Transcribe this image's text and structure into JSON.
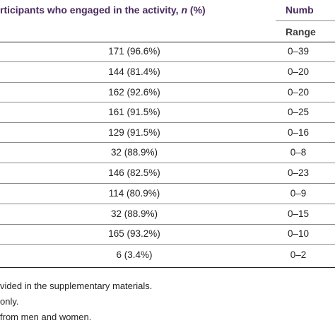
{
  "header": {
    "participants_prefix": "rticipants who engaged in the activity, ",
    "participants_n": "n",
    "participants_suffix": " (%)",
    "number_label": "Numb",
    "range_label": "Range"
  },
  "rows": [
    {
      "count": "171 (96.6%)",
      "range": "0–39"
    },
    {
      "count": "144 (81.4%)",
      "range": "0–20"
    },
    {
      "count": "162 (92.6%)",
      "range": "0–20"
    },
    {
      "count": "161 (91.5%)",
      "range": "0–25"
    },
    {
      "count": "129 (91.5%)",
      "range": "0–16"
    },
    {
      "count": "32 (88.9%)",
      "range": "0–8"
    },
    {
      "count": "146 (82.5%)",
      "range": "0–23"
    },
    {
      "count": "114 (80.9%)",
      "range": "0–9"
    },
    {
      "count": "32 (88.9%)",
      "range": "0–15"
    },
    {
      "count": "165 (93.2%)",
      "range": "0–10"
    },
    {
      "count": "6 (3.4%)",
      "range": "0–2"
    }
  ],
  "notes": [
    "vided in the supplementary materials.",
    "only.",
    "from men and women."
  ]
}
